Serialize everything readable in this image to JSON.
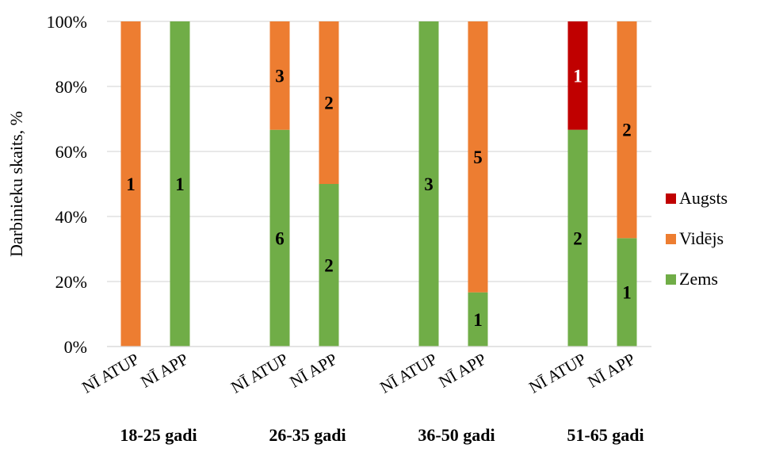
{
  "chart_data": {
    "type": "bar",
    "stacked": "percent",
    "ylabel": "Darbinieku skaits, %",
    "xlabel": "",
    "ylim": [
      0,
      100
    ],
    "y_ticks": [
      "0%",
      "20%",
      "40%",
      "60%",
      "80%",
      "100%"
    ],
    "grid": true,
    "legend_position": "right",
    "categories": [
      "NĪ ATUP",
      "NĪ APP",
      "NĪ ATUP",
      "NĪ APP",
      "NĪ ATUP",
      "NĪ APP",
      "NĪ ATUP",
      "NĪ APP"
    ],
    "groups": [
      {
        "label": "18-25 gadi",
        "members": [
          0,
          1
        ]
      },
      {
        "label": "26-35 gadi",
        "members": [
          2,
          3
        ]
      },
      {
        "label": "36-50 gadi",
        "members": [
          4,
          5
        ]
      },
      {
        "label": "51-65 gadi",
        "members": [
          6,
          7
        ]
      }
    ],
    "series": [
      {
        "name": "Zems",
        "color": "#70AD47",
        "counts": [
          0,
          1,
          6,
          2,
          3,
          1,
          2,
          1
        ]
      },
      {
        "name": "Vidējs",
        "color": "#ED7D31",
        "counts": [
          1,
          0,
          3,
          2,
          0,
          5,
          0,
          2
        ]
      },
      {
        "name": "Augsts",
        "color": "#C00000",
        "counts": [
          0,
          0,
          0,
          0,
          0,
          0,
          1,
          0
        ]
      }
    ],
    "legend_order": [
      "Augsts",
      "Vidējs",
      "Zems"
    ]
  }
}
